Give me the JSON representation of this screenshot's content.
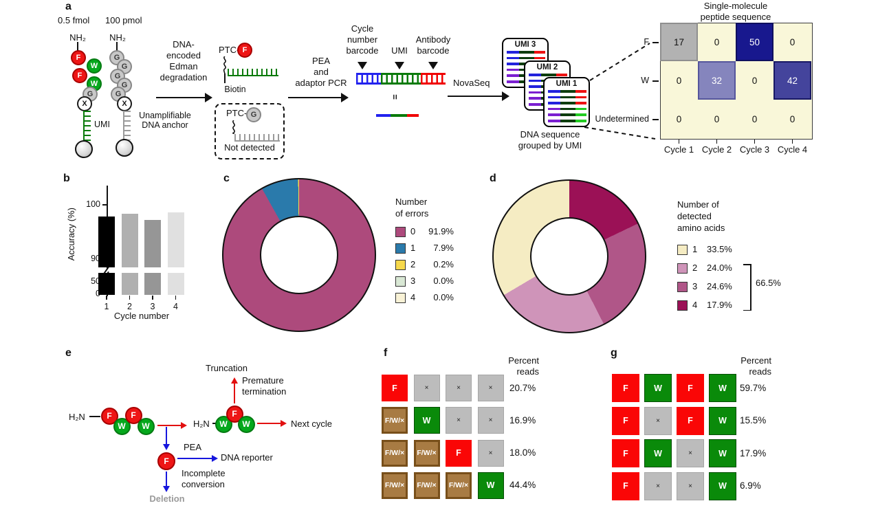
{
  "panel_labels": {
    "a": "a",
    "b": "b",
    "c": "c",
    "d": "d",
    "e": "e",
    "f": "f",
    "g": "g"
  },
  "panel_a": {
    "amount_left": "0.5 fmol",
    "amount_right": "100 pmol",
    "amine_label": "NH₂",
    "peptide_left_residues": [
      "F",
      "W",
      "F",
      "W",
      "G",
      "X"
    ],
    "peptide_right_residues": [
      "G",
      "G",
      "G",
      "G",
      "G",
      "X"
    ],
    "umi_label": "UMI",
    "anchor_lines": [
      "Unamplifiable",
      "DNA anchor"
    ],
    "edman_lines": [
      "DNA-",
      "encoded",
      "Edman",
      "degradation"
    ],
    "ptc_detected": {
      "prefix": "PTC-",
      "residue": "F",
      "tag": "Biotin"
    },
    "ptc_not_detected": {
      "prefix": "PTC-",
      "residue": "G",
      "caption": "Not detected"
    },
    "pea_lines": [
      "PEA",
      "and",
      "adaptor PCR"
    ],
    "barcode_cycle_lines": [
      "Cycle",
      "number",
      "barcode"
    ],
    "barcode_umi": "UMI",
    "barcode_antibody_lines": [
      "Antibody",
      "barcode"
    ],
    "equiv": "=",
    "novaseq": "NovaSeq",
    "umi_cards": [
      "UMI 3",
      "UMI 2",
      "UMI 1"
    ],
    "caption_lines": [
      "DNA sequence",
      "grouped by UMI"
    ],
    "heatmap_title_lines": [
      "Single-molecule",
      "peptide sequence"
    ],
    "heatmap_bg": "#f9f7d9",
    "heatmap_fills": [
      [
        "#b2b2b2",
        "",
        "#18188e",
        ""
      ],
      [
        "",
        "#8585bd",
        "",
        "#44449c"
      ],
      [
        "",
        "",
        "",
        ""
      ]
    ]
  },
  "panel_b": {
    "ylabel": "Accuracy (%)",
    "xlabel": "Cycle number",
    "ytick_labels": [
      "100",
      "90",
      "50",
      "0"
    ],
    "bar_colors": [
      "#000000",
      "#b0b0b0",
      "#969696",
      "#e0e0e0"
    ]
  },
  "panel_c": {
    "legend_title_lines": [
      "Number",
      "of errors"
    ]
  },
  "panel_d": {
    "legend_title_lines": [
      "Number of",
      "detected",
      "amino acids"
    ],
    "bracket_label": "66.5%"
  },
  "panel_e": {
    "h2n": "H₂N",
    "peptide_main": [
      "F",
      "W",
      "F",
      "W"
    ],
    "peptide_after": [
      "W",
      "F",
      "W"
    ],
    "released": "F",
    "truncation": "Truncation",
    "premature_lines": [
      "Premature",
      "termination"
    ],
    "next_cycle": "Next cycle",
    "pea": "PEA",
    "dna_reporter": "DNA reporter",
    "incomplete_lines": [
      "Incomplete",
      "conversion"
    ],
    "deletion": "Deletion"
  },
  "panel_f": {
    "header_lines": [
      "Percent",
      "reads"
    ]
  },
  "panel_g": {
    "header_lines": [
      "Percent",
      "reads"
    ]
  },
  "cell_styles": {
    "F": {
      "label": "F",
      "bg": "#fa0606",
      "fg": "#ffffff",
      "border": "",
      "border_w": 0
    },
    "W": {
      "label": "W",
      "bg": "#0a8a0a",
      "fg": "#ffffff",
      "border": "#044d04",
      "border_w": 1.5
    },
    "×": {
      "label": "×",
      "bg": "#bcbcbc",
      "fg": "#222222",
      "border": "#a6a6a6",
      "border_w": 1
    },
    "F/W/×": {
      "label": "F/W/×",
      "bg": "#a87b43",
      "fg": "#ffffff",
      "border": "#784f1a",
      "border_w": 3
    }
  },
  "residue_colors": {
    "F": {
      "bg": "#ee1515",
      "border": "#a80000",
      "fg": "#ffffff"
    },
    "W": {
      "bg": "#05a81c",
      "border": "#047a12",
      "fg": "#ffffff"
    },
    "G": {
      "bg": "#c8c8c8",
      "border": "#878787",
      "fg": "#3a3a3a"
    },
    "X": {
      "bg": "#ffffff",
      "border": "#1a1a1a",
      "fg": "#1a1a1a"
    }
  },
  "chart_data": [
    {
      "id": "panel_a_heatmap",
      "type": "heatmap",
      "title": "Single-molecule peptide sequence",
      "rows": [
        "F",
        "W",
        "Undetermined"
      ],
      "columns": [
        "Cycle 1",
        "Cycle 2",
        "Cycle 3",
        "Cycle 4"
      ],
      "values": [
        [
          17,
          0,
          50,
          0
        ],
        [
          0,
          32,
          0,
          42
        ],
        [
          0,
          0,
          0,
          0
        ]
      ]
    },
    {
      "id": "panel_b_bar",
      "type": "bar",
      "categories": [
        "1",
        "2",
        "3",
        "4"
      ],
      "values": [
        97.8,
        98.3,
        97.2,
        98.6
      ],
      "xlabel": "Cycle number",
      "ylabel": "Accuracy (%)",
      "yticks": [
        0,
        50,
        90,
        100
      ],
      "axis_break_between": [
        50,
        90
      ],
      "bar_colors": [
        "#000000",
        "#b0b0b0",
        "#969696",
        "#e0e0e0"
      ]
    },
    {
      "id": "panel_c_donut",
      "type": "pie",
      "subtype": "donut",
      "legend_title": "Number of errors",
      "labels": [
        "0",
        "1",
        "2",
        "3",
        "4"
      ],
      "values": [
        91.9,
        7.9,
        0.2,
        0.0,
        0.0
      ],
      "colors": [
        "#ad4a7c",
        "#2a7aab",
        "#f6d84b",
        "#d9e8d5",
        "#f9f2d6"
      ],
      "draw_order_clockwise_from_top": [
        0,
        1,
        2,
        3,
        4
      ]
    },
    {
      "id": "panel_d_donut",
      "type": "pie",
      "subtype": "donut",
      "legend_title": "Number of detected amino acids",
      "labels": [
        "1",
        "2",
        "3",
        "4"
      ],
      "values": [
        33.5,
        24.0,
        24.6,
        17.9
      ],
      "colors": [
        "#f5ecc3",
        "#cf94b9",
        "#b05688",
        "#9b1156"
      ],
      "group_annotation": {
        "labels": [
          "2",
          "3",
          "4"
        ],
        "value": "66.5%"
      },
      "draw_order_clockwise_from_top": [
        3,
        2,
        1,
        0
      ]
    },
    {
      "id": "panel_f_table",
      "type": "table",
      "header": "Percent reads",
      "rows": [
        {
          "cells": [
            "F",
            "×",
            "×",
            "×"
          ],
          "percent": "20.7%"
        },
        {
          "cells": [
            "F/W/×",
            "W",
            "×",
            "×"
          ],
          "percent": "16.9%"
        },
        {
          "cells": [
            "F/W/×",
            "F/W/×",
            "F",
            "×"
          ],
          "percent": "18.0%"
        },
        {
          "cells": [
            "F/W/×",
            "F/W/×",
            "F/W/×",
            "W"
          ],
          "percent": "44.4%"
        }
      ]
    },
    {
      "id": "panel_g_table",
      "type": "table",
      "header": "Percent reads",
      "rows": [
        {
          "cells": [
            "F",
            "W",
            "F",
            "W"
          ],
          "percent": "59.7%"
        },
        {
          "cells": [
            "F",
            "×",
            "F",
            "W"
          ],
          "percent": "15.5%"
        },
        {
          "cells": [
            "F",
            "W",
            "×",
            "W"
          ],
          "percent": "17.9%"
        },
        {
          "cells": [
            "F",
            "×",
            "×",
            "W"
          ],
          "percent": "6.9%"
        }
      ]
    }
  ]
}
